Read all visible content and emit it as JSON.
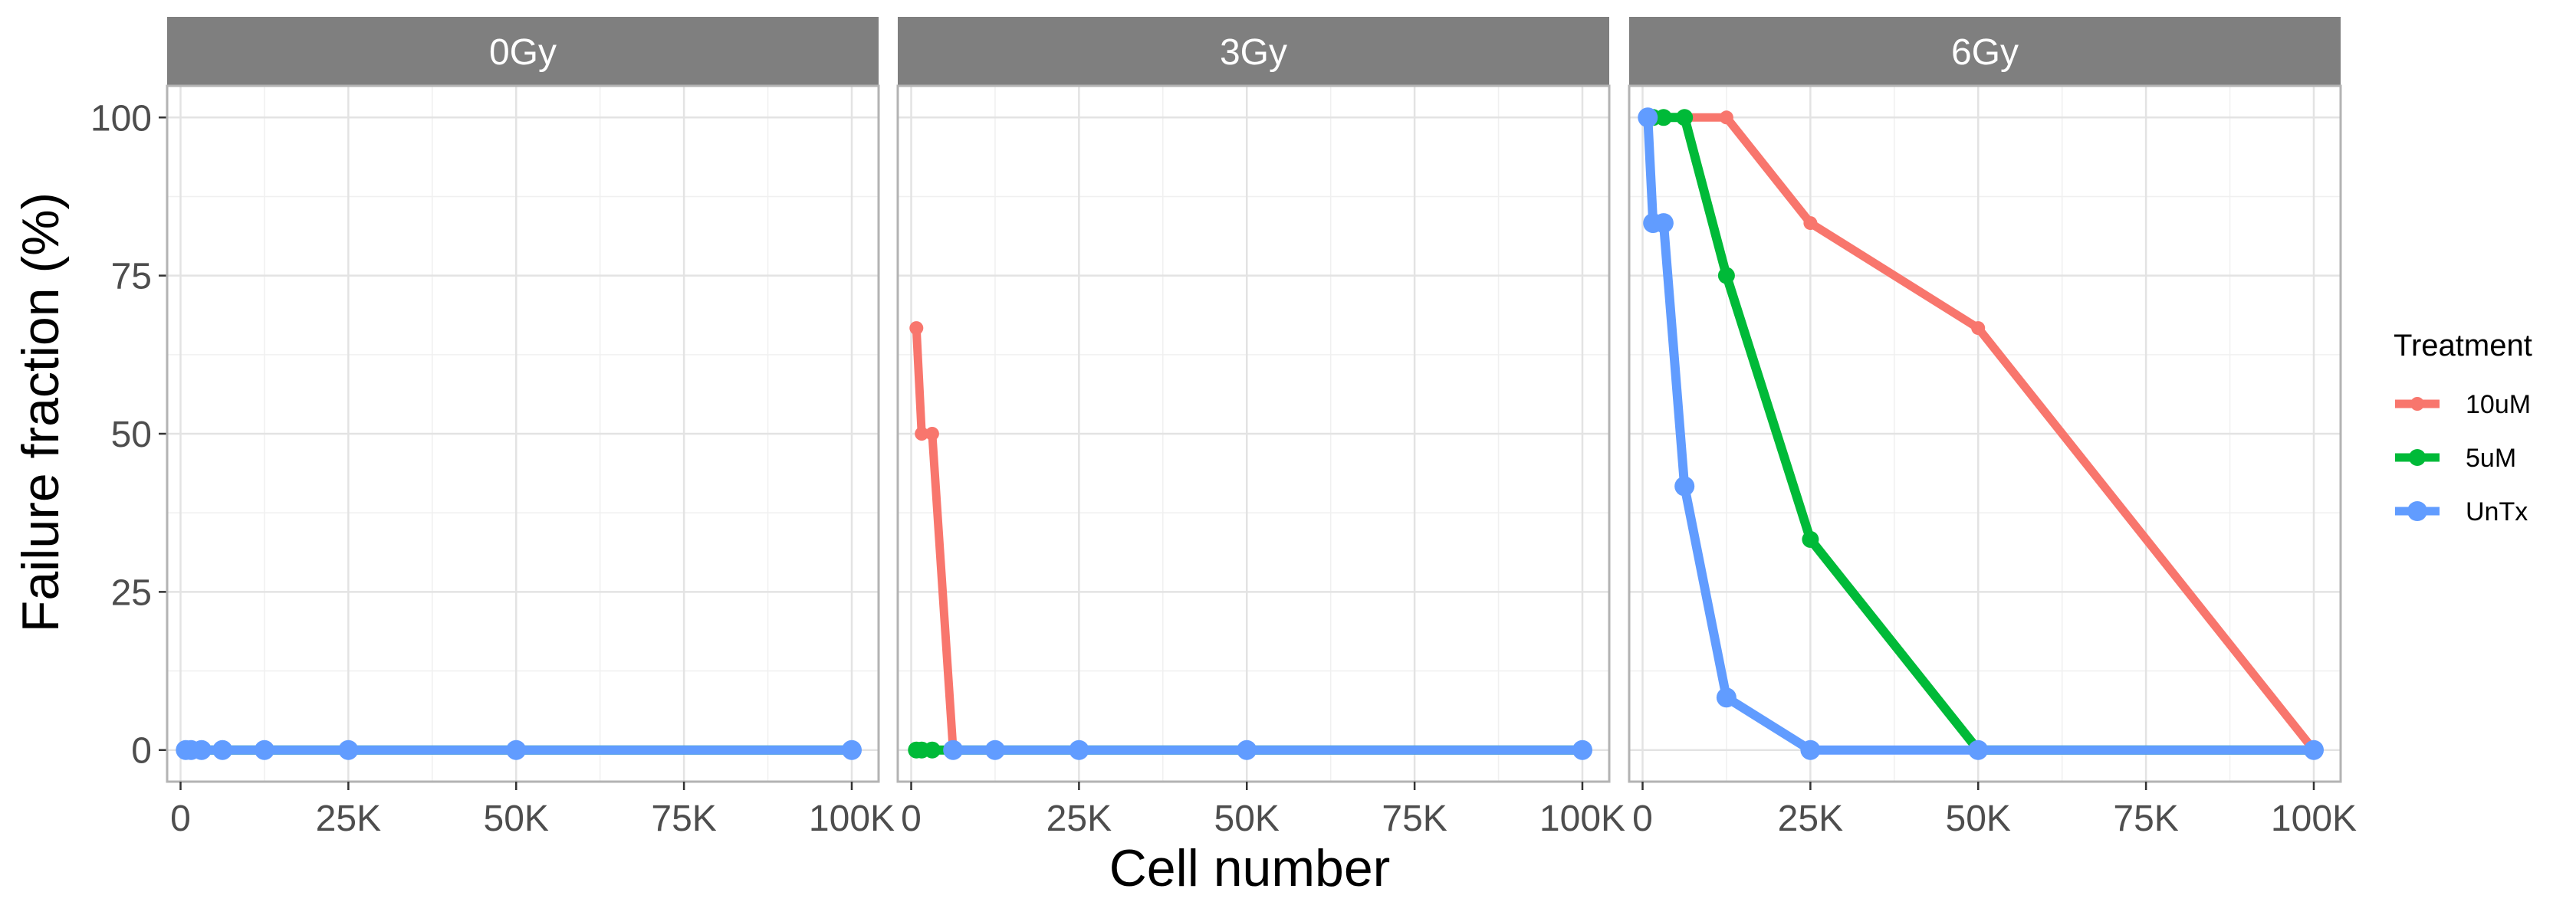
{
  "chart_data": {
    "type": "line",
    "facet_by": "Radiation dose",
    "xlabel": "Cell number",
    "ylabel": "Failure fraction (%)",
    "xlim": [
      -2000,
      104000
    ],
    "ylim": [
      -5,
      105
    ],
    "x_ticks": [
      0,
      25000,
      50000,
      75000,
      100000
    ],
    "x_tick_labels": [
      "0",
      "25K",
      "50K",
      "75K",
      "100K"
    ],
    "y_ticks": [
      0,
      25,
      50,
      75,
      100
    ],
    "y_tick_labels": [
      "0",
      "25",
      "50",
      "75",
      "100"
    ],
    "grid": true,
    "legend": {
      "title": "Treatment",
      "position": "right",
      "entries": [
        {
          "label": "10uM",
          "color": "#F8766D"
        },
        {
          "label": "5uM",
          "color": "#00BA38"
        },
        {
          "label": "UnTx",
          "color": "#619CFF"
        }
      ]
    },
    "panels": [
      {
        "label": "0Gy",
        "series": [
          {
            "name": "10uM",
            "color": "#F8766D",
            "x": [
              781,
              1563,
              3125,
              6250,
              12500,
              25000,
              50000,
              100000
            ],
            "y": [
              0,
              0,
              0,
              0,
              0,
              0,
              0,
              0
            ]
          },
          {
            "name": "5uM",
            "color": "#00BA38",
            "x": [
              781,
              1563,
              3125,
              6250,
              12500,
              25000,
              50000,
              100000
            ],
            "y": [
              0,
              0,
              0,
              0,
              0,
              0,
              0,
              0
            ]
          },
          {
            "name": "UnTx",
            "color": "#619CFF",
            "x": [
              781,
              1563,
              3125,
              6250,
              12500,
              25000,
              50000,
              100000
            ],
            "y": [
              0,
              0,
              0,
              0,
              0,
              0,
              0,
              0
            ]
          }
        ]
      },
      {
        "label": "3Gy",
        "series": [
          {
            "name": "10uM",
            "color": "#F8766D",
            "x": [
              781,
              1563,
              3125,
              6250,
              12500,
              25000,
              50000,
              100000
            ],
            "y": [
              66.7,
              50,
              50,
              0,
              0,
              0,
              0,
              0
            ]
          },
          {
            "name": "5uM",
            "color": "#00BA38",
            "x": [
              781,
              1563,
              3125,
              6250,
              12500,
              25000,
              50000,
              100000
            ],
            "y": [
              0,
              0,
              0,
              0,
              0,
              0,
              0,
              0
            ]
          },
          {
            "name": "UnTx",
            "color": "#619CFF",
            "x": [
              6250,
              12500,
              25000,
              50000,
              100000
            ],
            "y": [
              0,
              0,
              0,
              0,
              0
            ]
          }
        ]
      },
      {
        "label": "6Gy",
        "series": [
          {
            "name": "10uM",
            "color": "#F8766D",
            "x": [
              781,
              1563,
              3125,
              6250,
              12500,
              25000,
              50000,
              100000
            ],
            "y": [
              100,
              100,
              100,
              100,
              100,
              83.3,
              66.7,
              0
            ]
          },
          {
            "name": "5uM",
            "color": "#00BA38",
            "x": [
              781,
              1563,
              3125,
              6250,
              12500,
              25000,
              50000,
              100000
            ],
            "y": [
              100,
              100,
              100,
              100,
              75,
              33.3,
              0,
              0
            ]
          },
          {
            "name": "UnTx",
            "color": "#619CFF",
            "x": [
              781,
              1563,
              3125,
              6250,
              12500,
              25000,
              50000,
              100000
            ],
            "y": [
              100,
              83.3,
              83.3,
              41.7,
              8.3,
              0,
              0,
              0
            ]
          }
        ]
      }
    ]
  }
}
